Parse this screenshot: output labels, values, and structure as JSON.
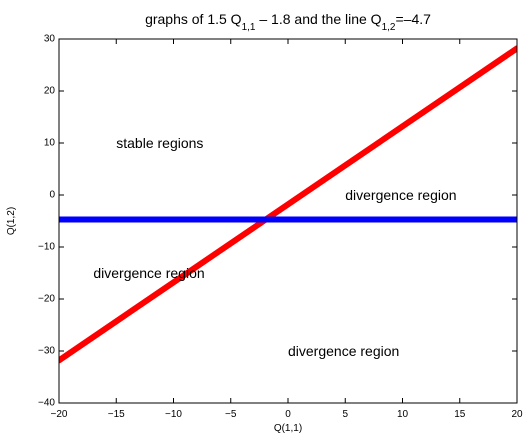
{
  "chart_data": {
    "type": "line",
    "title": {
      "parts": [
        {
          "text": "graphs of 1.5 Q"
        },
        {
          "text": "1,1",
          "sub": true
        },
        {
          "text": " – 1.8 and the line Q"
        },
        {
          "text": "1,2",
          "sub": true
        },
        {
          "text": "=–4.7"
        }
      ]
    },
    "xlabel": "Q(1,1)",
    "ylabel": "Q(1,2)",
    "xlim": [
      -20,
      20
    ],
    "ylim": [
      -40,
      30
    ],
    "xticks": [
      -20,
      -15,
      -10,
      -5,
      0,
      5,
      10,
      15,
      20
    ],
    "yticks": [
      -40,
      -30,
      -20,
      -10,
      0,
      10,
      20,
      30
    ],
    "xtick_labels": [
      "−20",
      "−15",
      "−10",
      "−5",
      "0",
      "5",
      "10",
      "15",
      "20"
    ],
    "ytick_labels": [
      "−40",
      "−30",
      "−20",
      "−10",
      "0",
      "10",
      "20",
      "30"
    ],
    "grid": false,
    "series": [
      {
        "color": "#ff0000",
        "x": [
          -20,
          -15,
          -10,
          -5,
          0,
          5,
          10,
          15,
          20
        ],
        "y": [
          -31.8,
          -24.3,
          -16.8,
          -9.3,
          -1.8,
          5.7,
          13.2,
          20.7,
          28.2
        ]
      },
      {
        "color": "#0000ff",
        "x": [
          -20,
          20
        ],
        "y": [
          -4.7,
          -4.7
        ]
      }
    ],
    "annotations": [
      {
        "text": "stable regions",
        "x": -15,
        "y": 10
      },
      {
        "text": "divergence region",
        "x": 5,
        "y": 0
      },
      {
        "text": "divergence region",
        "x": -17,
        "y": -15
      },
      {
        "text": "divergence region",
        "x": 0,
        "y": -30
      }
    ]
  }
}
